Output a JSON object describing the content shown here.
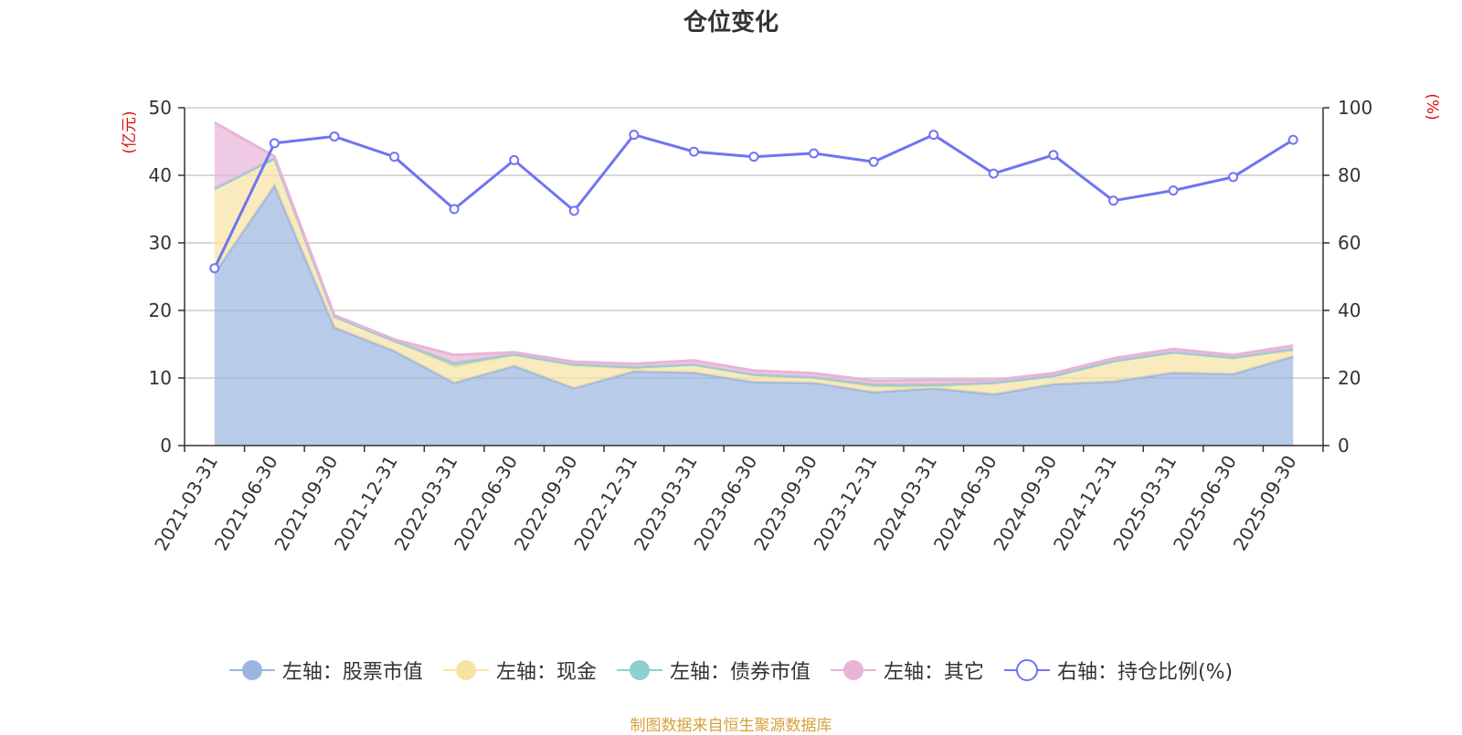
{
  "title": "仓位变化",
  "source_note": "制图数据来自恒生聚源数据库",
  "chart_data": {
    "type": "area",
    "title": "仓位变化",
    "categories": [
      "2021-03-31",
      "2021-06-30",
      "2021-09-30",
      "2021-12-31",
      "2022-03-31",
      "2022-06-30",
      "2022-09-30",
      "2022-12-31",
      "2023-03-31",
      "2023-06-30",
      "2023-09-30",
      "2023-12-31",
      "2024-03-31",
      "2024-06-30",
      "2024-09-30",
      "2024-12-31",
      "2025-03-31",
      "2025-06-30",
      "2025-09-30"
    ],
    "left_axis": {
      "unit": "(亿元)",
      "ylim": [
        0,
        50
      ],
      "ticks": [
        0,
        10,
        20,
        30,
        40,
        50
      ]
    },
    "right_axis": {
      "unit": "(%)",
      "ylim": [
        0,
        100
      ],
      "ticks": [
        0,
        20,
        40,
        60,
        80,
        100
      ]
    },
    "stacked_series": [
      {
        "name": "左轴：股票市值",
        "color": "#9ab5e0",
        "values": [
          25.5,
          38.5,
          17.5,
          14.0,
          9.3,
          11.8,
          8.5,
          11.0,
          10.8,
          9.4,
          9.3,
          7.9,
          8.5,
          7.6,
          9.1,
          9.5,
          10.8,
          10.6,
          13.2
        ]
      },
      {
        "name": "左轴：现金",
        "color": "#f7e3a1",
        "values": [
          12.5,
          4.0,
          1.6,
          1.5,
          2.4,
          1.6,
          3.4,
          0.4,
          1.2,
          1.0,
          0.7,
          0.8,
          0.2,
          1.6,
          1.2,
          3.0,
          3.0,
          2.4,
          0.8
        ]
      },
      {
        "name": "左轴：债券市值",
        "color": "#8ed0d0",
        "values": [
          0.0,
          0.0,
          0.0,
          0.0,
          0.5,
          0.1,
          0.1,
          0.2,
          0.0,
          0.1,
          0.1,
          0.3,
          0.3,
          0.1,
          0.0,
          0.0,
          0.0,
          0.0,
          0.3
        ]
      },
      {
        "name": "左轴：其它",
        "color": "#e8b4d9",
        "values": [
          9.8,
          0.3,
          0.2,
          0.2,
          1.2,
          0.3,
          0.4,
          0.5,
          0.6,
          0.6,
          0.6,
          0.6,
          0.7,
          0.4,
          0.4,
          0.4,
          0.5,
          0.4,
          0.5
        ]
      }
    ],
    "line_series": {
      "name": "右轴：持仓比例(%)",
      "color": "#6f74f2",
      "axis": "right",
      "values": [
        52.5,
        89.5,
        91.5,
        85.5,
        70.0,
        84.5,
        69.5,
        92.0,
        87.0,
        85.5,
        86.5,
        84.0,
        92.0,
        80.5,
        86.0,
        72.5,
        75.5,
        79.5,
        90.5
      ]
    },
    "grid": true,
    "legend_position": "bottom"
  },
  "legend": [
    {
      "label": "左轴：股票市值",
      "color": "#9ab5e0",
      "icon": "filled-circle-icon"
    },
    {
      "label": "左轴：现金",
      "color": "#f7e3a1",
      "icon": "filled-circle-icon"
    },
    {
      "label": "左轴：债券市值",
      "color": "#8ed0d0",
      "icon": "filled-circle-icon"
    },
    {
      "label": "左轴：其它",
      "color": "#e8b4d9",
      "icon": "filled-circle-icon"
    },
    {
      "label": "右轴：持仓比例(%)",
      "color": "#6f74f2",
      "icon": "hollow-circle-icon"
    }
  ]
}
